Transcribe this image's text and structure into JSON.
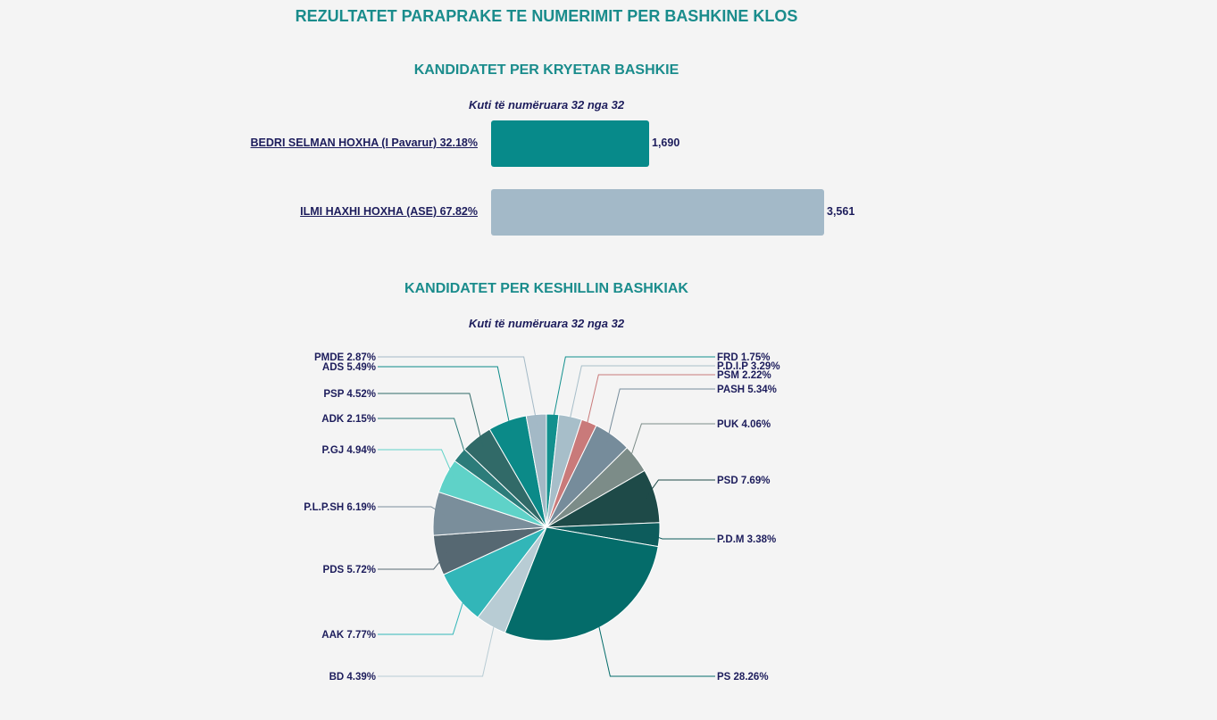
{
  "page": {
    "title": "REZULTATET PARAPRAKE TE NUMERIMIT PER BASHKINE KLOS"
  },
  "mayor": {
    "title": "KANDIDATET PER KRYETAR BASHKIE",
    "subtitle": "Kuti të numëruara 32 nga 32"
  },
  "council": {
    "title": "KANDIDATET PER KESHILLIN BASHKIAK",
    "subtitle": "Kuti të numëruara 32 nga 32"
  },
  "chart_data": [
    {
      "type": "bar",
      "orientation": "horizontal",
      "categories": [
        "BEDRI SELMAN HOXHA (I Pavarur) 32.18%",
        "ILMI HAXHI HOXHA (ASE) 67.82%"
      ],
      "values": [
        1690,
        3561
      ],
      "value_labels": [
        "1,690",
        "3,561"
      ],
      "colors": [
        "#078a8a",
        "#a3b9c8"
      ],
      "title": "KANDIDATET PER KRYETAR BASHKIE",
      "subtitle": "Kuti të numëruara 32 nga 32"
    },
    {
      "type": "pie",
      "title": "KANDIDATET PER KESHILLIN BASHKIAK",
      "subtitle": "Kuti të numëruara 32 nga 32",
      "slices": [
        {
          "label": "FRD 1.75%",
          "value": 1.75,
          "color": "#12908e"
        },
        {
          "label": "P.D.I.P 3.29%",
          "value": 3.29,
          "color": "#a7bec9"
        },
        {
          "label": "PSM 2.22%",
          "value": 2.22,
          "color": "#c97a7a"
        },
        {
          "label": "PASH 5.34%",
          "value": 5.34,
          "color": "#768c9b"
        },
        {
          "label": "PUK 4.06%",
          "value": 4.06,
          "color": "#7c8c88"
        },
        {
          "label": "PSD 7.69%",
          "value": 7.69,
          "color": "#1e4a48"
        },
        {
          "label": "P.D.M 3.38%",
          "value": 3.38,
          "color": "#0d5c5c"
        },
        {
          "label": "PS 28.26%",
          "value": 28.26,
          "color": "#046c6a"
        },
        {
          "label": "BD 4.39%",
          "value": 4.39,
          "color": "#b8ccd4"
        },
        {
          "label": "AAK 7.77%",
          "value": 7.77,
          "color": "#32b6b8"
        },
        {
          "label": "PDS 5.72%",
          "value": 5.72,
          "color": "#566872"
        },
        {
          "label": "P.L.P.SH 6.19%",
          "value": 6.19,
          "color": "#7a8e9b"
        },
        {
          "label": "P.GJ 4.94%",
          "value": 4.94,
          "color": "#5fd2c8"
        },
        {
          "label": "ADK 2.15%",
          "value": 2.15,
          "color": "#2c7c7a"
        },
        {
          "label": "PSP 4.52%",
          "value": 4.52,
          "color": "#316a68"
        },
        {
          "label": "ADS 5.49%",
          "value": 5.49,
          "color": "#0b8a88"
        },
        {
          "label": "PMDE 2.87%",
          "value": 2.87,
          "color": "#a3b9c6"
        }
      ]
    }
  ]
}
